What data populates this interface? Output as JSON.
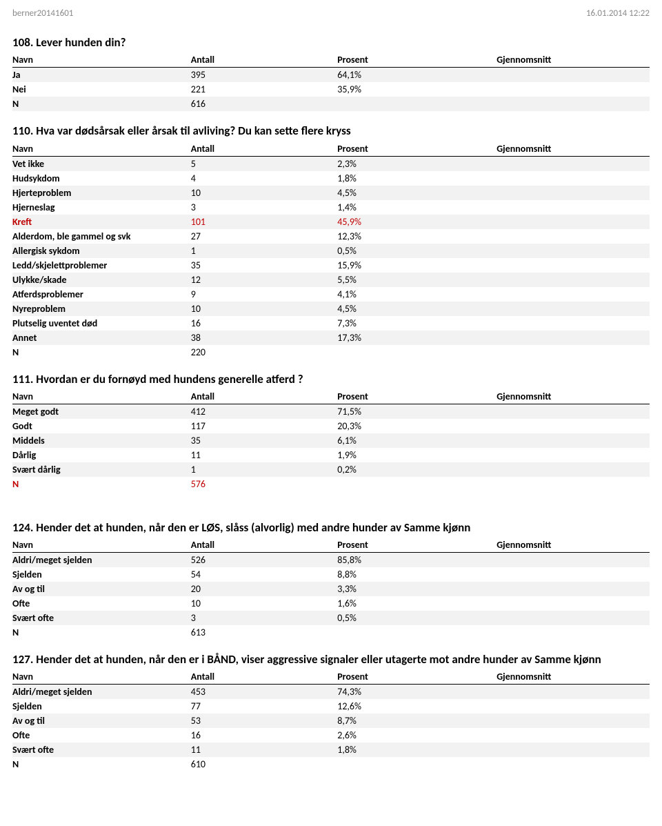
{
  "header": {
    "left": "berner20141601",
    "right": "16.01.2014 12:22"
  },
  "columns": {
    "name": "Navn",
    "count": "Antall",
    "percent": "Prosent",
    "avg": "Gjennomsnitt"
  },
  "colors": {
    "stripe": "#f2f2f2",
    "header_gray": "#8a8a8a",
    "red": "#c00000"
  },
  "sections": [
    {
      "title": "108. Lever hunden din?",
      "rows": [
        {
          "label": "Ja",
          "count": "395",
          "pct": "64,1%"
        },
        {
          "label": "Nei",
          "count": "221",
          "pct": "35,9%"
        },
        {
          "label": "N",
          "count": "616",
          "pct": ""
        }
      ]
    },
    {
      "title": "110. Hva var dødsårsak eller årsak til avliving? Du kan sette flere kryss",
      "rows": [
        {
          "label": "Vet ikke",
          "count": "5",
          "pct": "2,3%"
        },
        {
          "label": "Hudsykdom",
          "count": "4",
          "pct": "1,8%"
        },
        {
          "label": "Hjerteproblem",
          "count": "10",
          "pct": "4,5%"
        },
        {
          "label": "Hjerneslag",
          "count": "3",
          "pct": "1,4%"
        },
        {
          "label": "Kreft",
          "count": "101",
          "pct": "45,9%",
          "red": true
        },
        {
          "label": "Alderdom, ble gammel og svk",
          "count": "27",
          "pct": "12,3%"
        },
        {
          "label": "Allergisk sykdom",
          "count": "1",
          "pct": "0,5%"
        },
        {
          "label": "Ledd/skjelettproblemer",
          "count": "35",
          "pct": "15,9%"
        },
        {
          "label": "Ulykke/skade",
          "count": "12",
          "pct": "5,5%"
        },
        {
          "label": "Atferdsproblemer",
          "count": "9",
          "pct": "4,1%"
        },
        {
          "label": "Nyreproblem",
          "count": "10",
          "pct": "4,5%"
        },
        {
          "label": "Plutselig uventet død",
          "count": "16",
          "pct": "7,3%"
        },
        {
          "label": "Annet",
          "count": "38",
          "pct": "17,3%"
        },
        {
          "label": "N",
          "count": "220",
          "pct": ""
        }
      ]
    },
    {
      "title": "111. Hvordan er du fornøyd med hundens generelle atferd ?",
      "rows": [
        {
          "label": "Meget godt",
          "count": "412",
          "pct": "71,5%"
        },
        {
          "label": "Godt",
          "count": "117",
          "pct": "20,3%"
        },
        {
          "label": "Middels",
          "count": "35",
          "pct": "6,1%"
        },
        {
          "label": "Dårlig",
          "count": "11",
          "pct": "1,9%"
        },
        {
          "label": "Svært dårlig",
          "count": "1",
          "pct": "0,2%"
        },
        {
          "label": "N",
          "count": "576",
          "pct": "",
          "red": true
        }
      ]
    },
    {
      "title": "124. Hender det at hunden, når den er LØS, slåss (alvorlig) med andre hunder av Samme kjønn",
      "gap_before": true,
      "rows": [
        {
          "label": "Aldri/meget sjelden",
          "count": "526",
          "pct": "85,8%"
        },
        {
          "label": "Sjelden",
          "count": "54",
          "pct": "8,8%"
        },
        {
          "label": "Av og til",
          "count": "20",
          "pct": "3,3%"
        },
        {
          "label": "Ofte",
          "count": "10",
          "pct": "1,6%"
        },
        {
          "label": "Svært ofte",
          "count": "3",
          "pct": "0,5%"
        },
        {
          "label": "N",
          "count": "613",
          "pct": ""
        }
      ]
    },
    {
      "title": "127. Hender det at hunden, når den er i BÅND, viser aggressive signaler eller utagerte mot andre hunder av Samme kjønn",
      "rows": [
        {
          "label": "Aldri/meget sjelden",
          "count": "453",
          "pct": "74,3%"
        },
        {
          "label": "Sjelden",
          "count": "77",
          "pct": "12,6%"
        },
        {
          "label": "Av og til",
          "count": "53",
          "pct": "8,7%"
        },
        {
          "label": "Ofte",
          "count": "16",
          "pct": "2,6%"
        },
        {
          "label": "Svært ofte",
          "count": "11",
          "pct": "1,8%"
        },
        {
          "label": "N",
          "count": "610",
          "pct": ""
        }
      ]
    }
  ]
}
